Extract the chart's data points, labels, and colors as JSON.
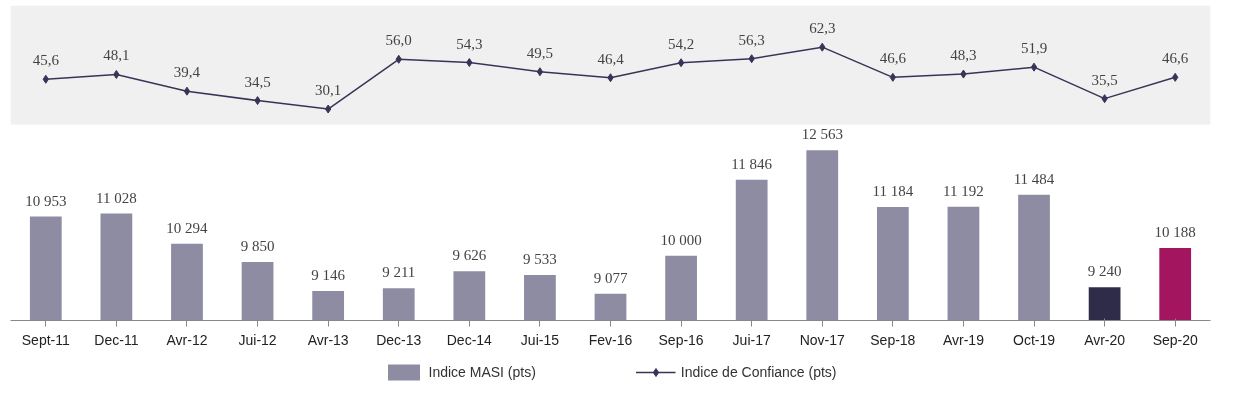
{
  "chart_data": {
    "type": "bar",
    "categories": [
      "Sept-11",
      "Dec-11",
      "Avr-12",
      "Jui-12",
      "Avr-13",
      "Dec-13",
      "Dec-14",
      "Jui-15",
      "Fev-16",
      "Sep-16",
      "Jui-17",
      "Nov-17",
      "Sep-18",
      "Avr-19",
      "Oct-19",
      "Avr-20",
      "Sep-20"
    ],
    "series": [
      {
        "name": "Indice MASI (pts)",
        "colors": [
          "#8e8ca3",
          "#8e8ca3",
          "#8e8ca3",
          "#8e8ca3",
          "#8e8ca3",
          "#8e8ca3",
          "#8e8ca3",
          "#8e8ca3",
          "#8e8ca3",
          "#8e8ca3",
          "#8e8ca3",
          "#8e8ca3",
          "#8e8ca3",
          "#8e8ca3",
          "#8e8ca3",
          "#2e2c48",
          "#a3155e"
        ],
        "values": [
          10953,
          11028,
          10294,
          9850,
          9146,
          9211,
          9626,
          9533,
          9077,
          10000,
          11846,
          12563,
          11184,
          11192,
          11484,
          9240,
          10188
        ],
        "value_labels": [
          "10 953",
          "11 028",
          "10 294",
          "9 850",
          "9 146",
          "9 211",
          "9 626",
          "9 533",
          "9 077",
          "10 000",
          "11 846",
          "12 563",
          "11 184",
          "11 192",
          "11 484",
          "9 240",
          "10 188"
        ]
      },
      {
        "name": "Indice de Confiance (pts)",
        "type": "line",
        "axis": "y2",
        "color": "#3b3357",
        "values": [
          45.6,
          48.1,
          39.4,
          34.5,
          30.1,
          56.0,
          54.3,
          49.5,
          46.4,
          54.2,
          56.3,
          62.3,
          46.6,
          48.3,
          51.9,
          35.5,
          46.6
        ],
        "value_labels": [
          "45,6",
          "48,1",
          "39,4",
          "34,5",
          "30,1",
          "56,0",
          "54,3",
          "49,5",
          "46,4",
          "54,2",
          "56,3",
          "62,3",
          "46,6",
          "48,3",
          "51,9",
          "35,5",
          "46,6"
        ]
      }
    ],
    "ylim": [
      8430,
      16080
    ],
    "y2lim": [
      -80,
      84
    ],
    "bands": [
      {
        "axis": "y2",
        "from": 22,
        "to": 84,
        "color": "#f0f0f0"
      }
    ],
    "tick_labels": "x",
    "legend": "bottom",
    "marker": "diamond"
  }
}
